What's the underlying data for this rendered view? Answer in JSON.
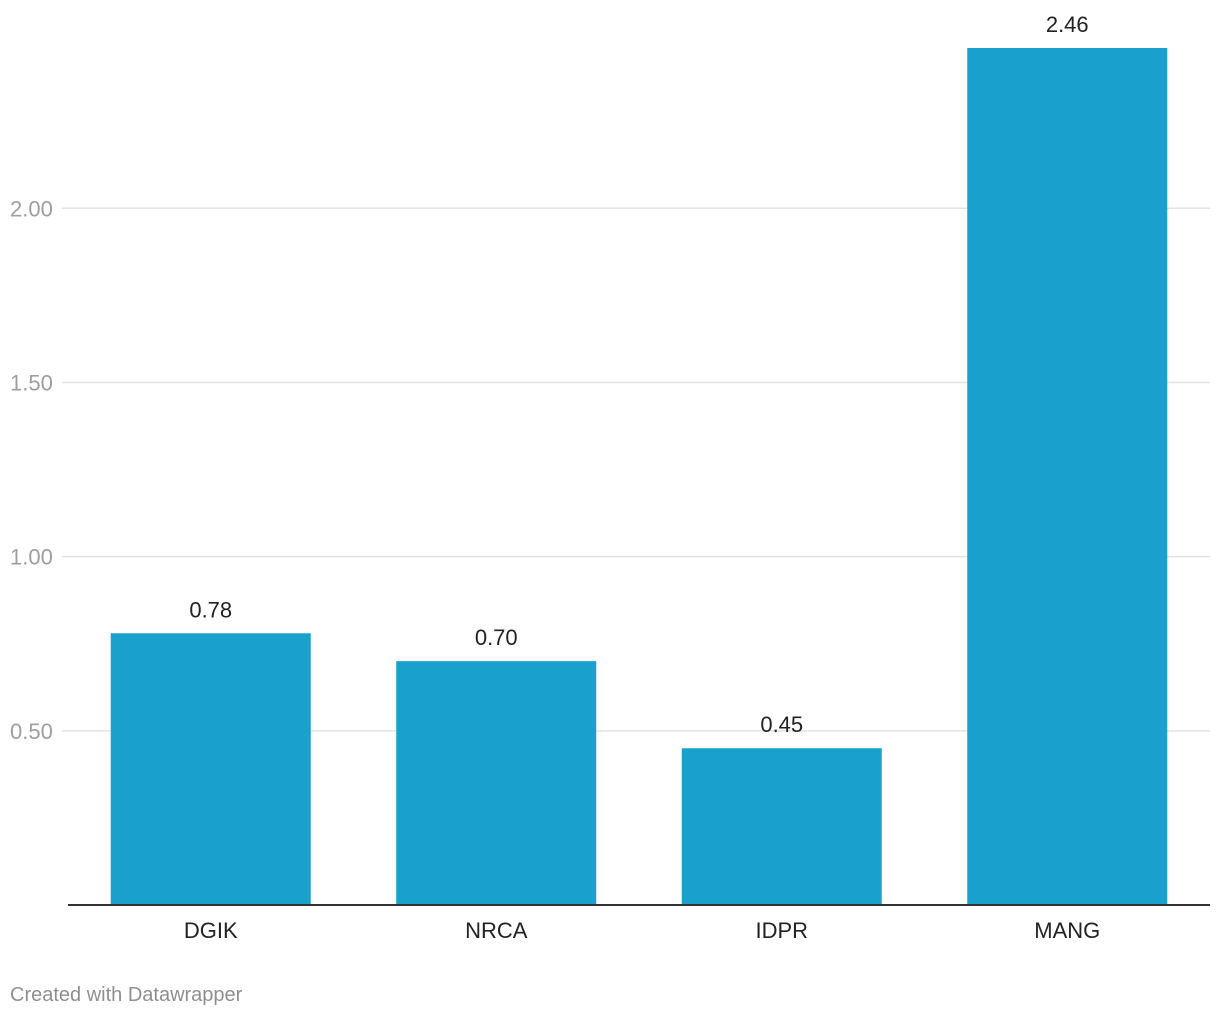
{
  "chart_data": {
    "type": "bar",
    "categories": [
      "DGIK",
      "NRCA",
      "IDPR",
      "MANG"
    ],
    "values": [
      0.78,
      0.7,
      0.45,
      2.46
    ],
    "value_labels": [
      "0.78",
      "0.70",
      "0.45",
      "2.46"
    ],
    "y_ticks": [
      0.5,
      1.0,
      1.5,
      2.0
    ],
    "y_tick_labels": [
      "0.50",
      "1.00",
      "1.50",
      "2.00"
    ],
    "ylim": [
      0,
      2.46
    ],
    "grid": true,
    "bar_color": "#1aa0cc",
    "title": "",
    "xlabel": "",
    "ylabel": ""
  },
  "footer": {
    "credit": "Created with Datawrapper"
  }
}
